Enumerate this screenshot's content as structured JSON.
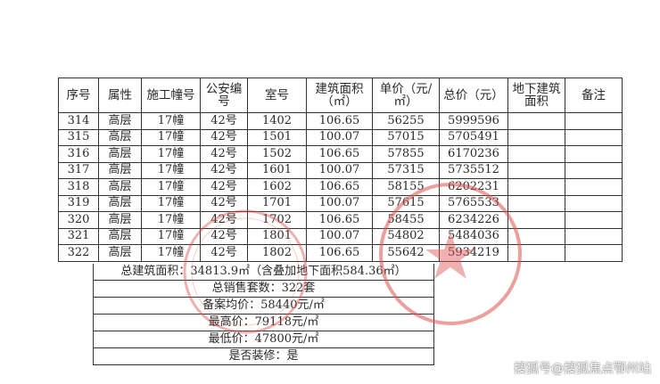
{
  "table": {
    "headers": [
      "序号",
      "属性",
      "施工幢号",
      "公安编号",
      "室号",
      "建筑面积（㎡）",
      "单价（元/㎡）",
      "总价（元）",
      "地下建筑面积",
      "备注"
    ],
    "rows": [
      [
        "314",
        "高层",
        "17幢",
        "42号",
        "1402",
        "106.65",
        "56255",
        "5999596",
        "",
        ""
      ],
      [
        "315",
        "高层",
        "17幢",
        "42号",
        "1501",
        "100.07",
        "57015",
        "5705491",
        "",
        ""
      ],
      [
        "316",
        "高层",
        "17幢",
        "42号",
        "1502",
        "106.65",
        "57855",
        "6170236",
        "",
        ""
      ],
      [
        "317",
        "高层",
        "17幢",
        "42号",
        "1601",
        "100.07",
        "57315",
        "5735512",
        "",
        ""
      ],
      [
        "318",
        "高层",
        "17幢",
        "42号",
        "1602",
        "106.65",
        "58155",
        "6202231",
        "",
        ""
      ],
      [
        "319",
        "高层",
        "17幢",
        "42号",
        "1701",
        "100.07",
        "57615",
        "5765533",
        "",
        ""
      ],
      [
        "320",
        "高层",
        "17幢",
        "42号",
        "1702",
        "106.65",
        "58455",
        "6234226",
        "",
        ""
      ],
      [
        "321",
        "高层",
        "17幢",
        "42号",
        "1801",
        "100.07",
        "54802",
        "5484036",
        "",
        ""
      ],
      [
        "322",
        "高层",
        "17幢",
        "42号",
        "1802",
        "106.65",
        "55642",
        "5934219",
        "",
        ""
      ]
    ]
  },
  "summary": {
    "total_area": "总建筑面积：34813.9㎡（含叠加地下面积584.36㎡）",
    "total_units": "总销售套数：322套",
    "avg_price": "备案均价：58440元/㎡",
    "max_price": "最高价：79118元/㎡",
    "min_price": "最低价：47800元/㎡",
    "decorated": "是否装修：是"
  },
  "stamp_color": "#d9534f",
  "watermark": "搜狐号@搜狐焦点鄂州站"
}
